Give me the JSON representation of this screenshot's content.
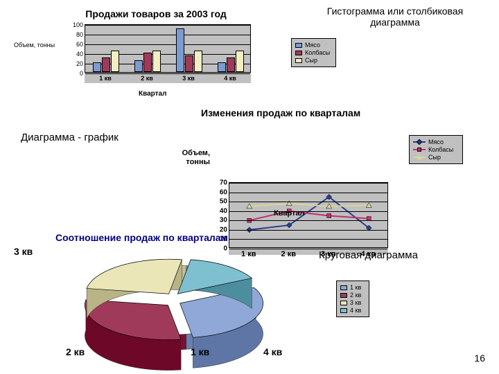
{
  "page_number": "16",
  "bar_chart": {
    "title": "Продажи товаров за 2003 год",
    "annotation": "Гистограмма или столбиковая диаграмма",
    "y_label": "Объем, тонны",
    "x_axis_title": "Квартал",
    "y_ticks": [
      "0",
      "20",
      "40",
      "60",
      "80",
      "100"
    ],
    "ylim": [
      0,
      100
    ],
    "categories": [
      "1 кв",
      "2 кв",
      "3 кв",
      "4 кв"
    ],
    "series": [
      {
        "name": "Мясо",
        "color": "#7b9cd3",
        "values": [
          20,
          25,
          90,
          20
        ]
      },
      {
        "name": "Колбасы",
        "color": "#a03a5a",
        "values": [
          30,
          40,
          35,
          30
        ]
      },
      {
        "name": "Сыр",
        "color": "#f2eec2",
        "values": [
          45,
          45,
          45,
          45
        ]
      }
    ],
    "bg": "#c0c0c0",
    "bar_border": "#000"
  },
  "line_chart": {
    "title": "Изменения продаж по кварталам",
    "annotation": "Диаграмма - график",
    "y_label_1": "Объем,",
    "y_label_2": "тонны",
    "x_axis_title": "Квартал",
    "y_ticks": [
      "0",
      "10",
      "20",
      "30",
      "40",
      "50",
      "60",
      "70"
    ],
    "ylim": [
      0,
      70
    ],
    "categories": [
      "1 кв",
      "2 кв",
      "3 кв",
      "4 кв"
    ],
    "series": [
      {
        "name": "Мясо",
        "color": "#2a3d8f",
        "marker": "diamond",
        "values": [
          20,
          25,
          55,
          22
        ]
      },
      {
        "name": "Колбасы",
        "color": "#c03070",
        "marker": "square",
        "values": [
          30,
          40,
          35,
          32
        ]
      },
      {
        "name": "Сыр",
        "color": "#d8d49a",
        "marker": "triangle",
        "values": [
          45,
          48,
          45,
          46
        ]
      }
    ],
    "bg": "#c0c0c0"
  },
  "pie_chart": {
    "title": "Соотношение продаж по кварталам",
    "annotation": "Круговая диаграмма",
    "slices": [
      {
        "label": "1 кв",
        "color": "#8fa8d8",
        "value": 30
      },
      {
        "label": "2 кв",
        "color": "#a03a5a",
        "value": 30
      },
      {
        "label": "3 кв",
        "color": "#eae6b8",
        "value": 25
      },
      {
        "label": "4 кв",
        "color": "#7fc0d0",
        "value": 15
      }
    ],
    "bg": "#c0c0c0"
  }
}
